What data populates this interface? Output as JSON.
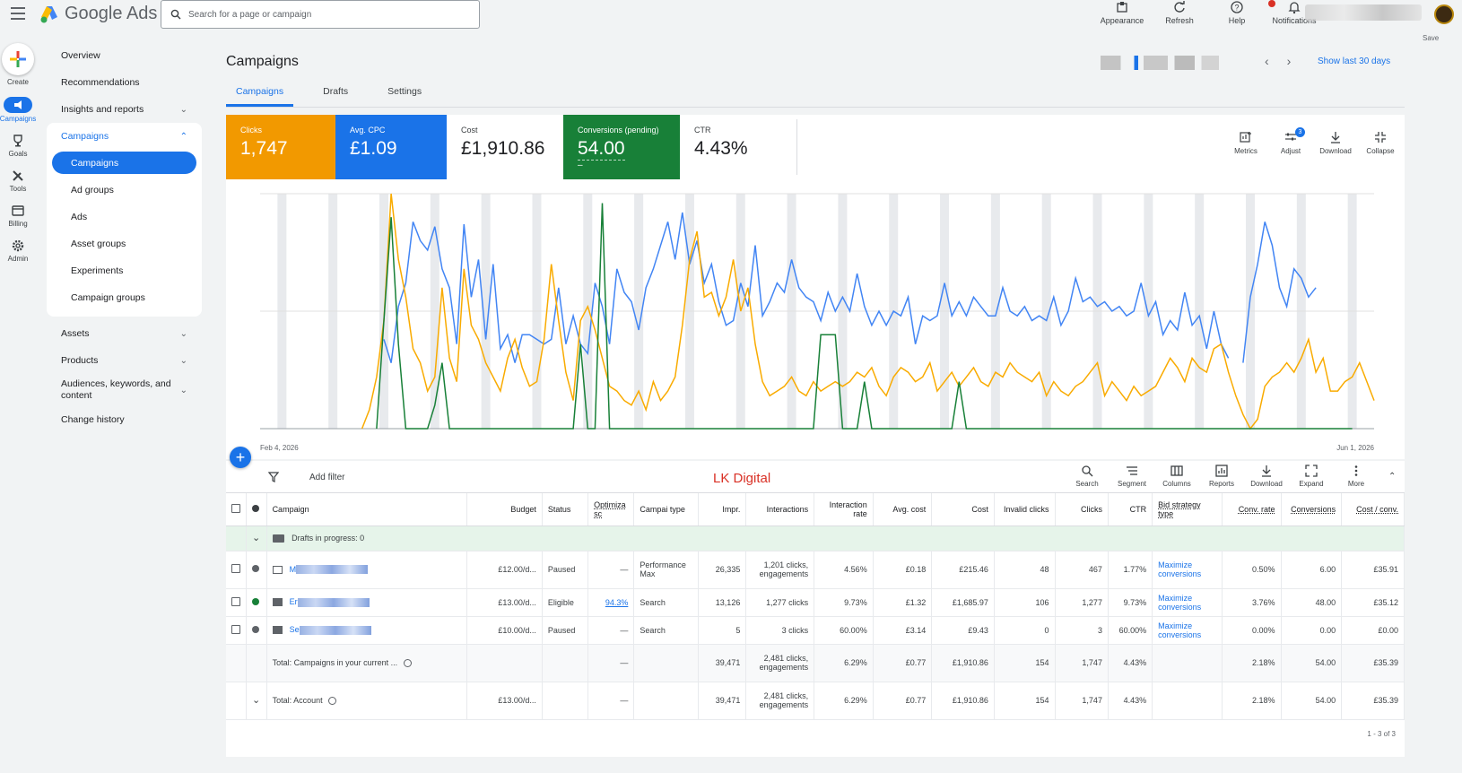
{
  "app": {
    "name": "Google Ads",
    "search_placeholder": "Search for a page or campaign"
  },
  "top_actions": [
    {
      "label": "Appearance",
      "icon": "appearance-icon"
    },
    {
      "label": "Refresh",
      "icon": "refresh-icon"
    },
    {
      "label": "Help",
      "icon": "help-icon"
    },
    {
      "label": "Notifications",
      "icon": "bell-icon"
    }
  ],
  "account": {
    "save_label": "Save"
  },
  "rail": [
    {
      "label": "Create",
      "icon": "plus-icon"
    },
    {
      "label": "Campaigns",
      "icon": "megaphone-icon",
      "active": true
    },
    {
      "label": "Goals",
      "icon": "trophy-icon"
    },
    {
      "label": "Tools",
      "icon": "tools-icon"
    },
    {
      "label": "Billing",
      "icon": "card-icon"
    },
    {
      "label": "Admin",
      "icon": "gear-icon"
    }
  ],
  "sidenav": {
    "overview": "Overview",
    "recommendations": "Recommendations",
    "insights": "Insights and reports",
    "campaigns_section": "Campaigns",
    "subitems": [
      "Campaigns",
      "Ad groups",
      "Ads",
      "Asset groups",
      "Experiments",
      "Campaign groups"
    ],
    "assets": "Assets",
    "products": "Products",
    "audiences": "Audiences, keywords, and content",
    "change_history": "Change history"
  },
  "page": {
    "title": "Campaigns",
    "show_last": "Show last 30 days",
    "tabs": [
      "Campaigns",
      "Drafts",
      "Settings"
    ]
  },
  "scorecards": [
    {
      "label": "Clicks",
      "value": "1,747",
      "color": "#f29900"
    },
    {
      "label": "Avg. CPC",
      "value": "£1.09",
      "color": "#1a73e8"
    },
    {
      "label": "Cost",
      "value": "£1,910.86",
      "color": "#ffffff"
    },
    {
      "label": "Conversions (pending)",
      "value": "54.00",
      "sub": "–",
      "color": "#188038"
    },
    {
      "label": "CTR",
      "value": "4.43%",
      "color": "#ffffff"
    }
  ],
  "card_tools": [
    "Metrics",
    "Adjust",
    "Download",
    "Collapse"
  ],
  "adjust_badge": "3",
  "chart_data": {
    "type": "line",
    "x_start_label": "Feb 4, 2026",
    "x_end_label": "Jun 1, 2026",
    "series": [
      {
        "color": "#4285f4",
        "values": [
          null,
          null,
          null,
          null,
          null,
          null,
          null,
          null,
          null,
          null,
          null,
          null,
          null,
          null,
          null,
          null,
          null,
          0.38,
          0.28,
          0.52,
          0.62,
          0.88,
          0.8,
          0.76,
          0.86,
          0.68,
          0.6,
          0.36,
          0.87,
          0.56,
          0.72,
          0.38,
          0.7,
          0.34,
          0.4,
          0.28,
          0.4,
          0.4,
          0.38,
          0.36,
          0.38,
          0.6,
          0.36,
          0.48,
          0.36,
          0.32,
          0.62,
          0.52,
          0.36,
          0.68,
          0.58,
          0.54,
          0.42,
          0.6,
          0.68,
          0.78,
          0.88,
          0.72,
          0.92,
          0.7,
          0.8,
          0.62,
          0.7,
          0.54,
          0.44,
          0.46,
          0.62,
          0.52,
          0.78,
          0.48,
          0.54,
          0.62,
          0.58,
          0.72,
          0.6,
          0.56,
          0.54,
          0.46,
          0.58,
          0.5,
          0.56,
          0.5,
          0.66,
          0.52,
          0.44,
          0.5,
          0.44,
          0.5,
          0.48,
          0.56,
          0.36,
          0.48,
          0.46,
          0.48,
          0.62,
          0.48,
          0.54,
          0.48,
          0.56,
          0.52,
          0.48,
          0.48,
          0.6,
          0.5,
          0.48,
          0.52,
          0.46,
          0.48,
          0.46,
          0.56,
          0.44,
          0.5,
          0.64,
          0.54,
          0.56,
          0.52,
          0.54,
          0.5,
          0.52,
          0.48,
          0.5,
          0.62,
          0.48,
          0.54,
          0.4,
          0.46,
          0.42,
          0.58,
          0.44,
          0.48,
          0.34,
          0.5,
          0.36,
          0.3,
          null,
          0.28,
          0.56,
          0.7,
          0.88,
          0.78,
          0.6,
          0.52,
          0.68,
          0.64,
          0.56,
          0.6
        ]
      },
      {
        "color": "#f9ab00",
        "values": [
          null,
          null,
          null,
          null,
          null,
          null,
          null,
          null,
          null,
          null,
          null,
          null,
          null,
          null,
          0.0,
          0.08,
          0.22,
          0.46,
          1.0,
          0.72,
          0.56,
          0.34,
          0.28,
          0.16,
          0.22,
          0.6,
          0.3,
          0.2,
          0.68,
          0.44,
          0.38,
          0.28,
          0.22,
          0.16,
          0.3,
          0.38,
          0.26,
          0.18,
          0.2,
          0.38,
          0.7,
          0.46,
          0.24,
          0.12,
          0.46,
          0.52,
          0.42,
          0.3,
          0.18,
          0.16,
          0.12,
          0.1,
          0.16,
          0.08,
          0.2,
          0.12,
          0.16,
          0.22,
          0.44,
          0.72,
          0.84,
          0.56,
          0.58,
          0.48,
          0.56,
          0.72,
          0.5,
          0.6,
          0.36,
          0.2,
          0.14,
          0.16,
          0.18,
          0.22,
          0.16,
          0.14,
          0.2,
          0.16,
          0.18,
          0.2,
          0.18,
          0.2,
          0.24,
          0.22,
          0.26,
          0.18,
          0.14,
          0.22,
          0.26,
          0.24,
          0.2,
          0.22,
          0.28,
          0.16,
          0.2,
          0.24,
          0.18,
          0.22,
          0.26,
          0.2,
          0.18,
          0.24,
          0.22,
          0.28,
          0.24,
          0.22,
          0.2,
          0.24,
          0.14,
          0.2,
          0.16,
          0.14,
          0.18,
          0.2,
          0.24,
          0.28,
          0.14,
          0.2,
          0.16,
          0.12,
          0.18,
          0.14,
          0.16,
          0.18,
          0.24,
          0.3,
          0.26,
          0.2,
          0.3,
          0.26,
          0.24,
          0.34,
          0.36,
          0.24,
          0.14,
          0.06,
          0.0,
          0.04,
          0.18,
          0.22,
          0.24,
          0.28,
          0.24,
          0.3,
          0.38,
          0.24,
          0.3,
          0.16,
          0.16,
          0.2,
          0.22,
          0.28,
          0.2,
          0.12
        ]
      },
      {
        "color": "#188038",
        "values": [
          null,
          null,
          null,
          null,
          null,
          null,
          null,
          null,
          null,
          null,
          null,
          null,
          null,
          null,
          null,
          null,
          0.0,
          0.46,
          0.9,
          0.36,
          0.0,
          0.0,
          0.0,
          0.0,
          0.1,
          0.28,
          0.0,
          0.0,
          0.0,
          0.0,
          0.0,
          0.0,
          0.0,
          0.0,
          0.0,
          0.0,
          0.0,
          0.0,
          0.0,
          0.0,
          0.0,
          0.0,
          0.0,
          0.0,
          0.36,
          0.0,
          0.0,
          0.96,
          0.0,
          0.0,
          0.0,
          0.0,
          0.0,
          0.0,
          0.0,
          0.0,
          0.0,
          0.0,
          0.0,
          0.0,
          0.0,
          0.0,
          0.0,
          0.0,
          0.0,
          0.0,
          0.0,
          0.0,
          0.0,
          0.0,
          0.0,
          0.0,
          0.0,
          0.0,
          0.0,
          0.0,
          0.0,
          0.4,
          0.4,
          0.4,
          0.0,
          0.0,
          0.0,
          0.2,
          0.0,
          0.0,
          0.0,
          0.0,
          0.0,
          0.0,
          0.0,
          0.0,
          0.0,
          0.0,
          0.0,
          0.0,
          0.2,
          0.0,
          0.0,
          0.0,
          0.0,
          0.0,
          0.0,
          0.0,
          0.0,
          0.0,
          0.0,
          0.0,
          0.0,
          0.0,
          0.0,
          0.0,
          0.0,
          0.0,
          0.0,
          0.0,
          0.0,
          0.0,
          0.0,
          0.0,
          0.0,
          0.0,
          0.0,
          0.0,
          0.0,
          0.0,
          0.0,
          0.0,
          0.0,
          0.0,
          0.0,
          0.0,
          0.0,
          0.0,
          0.0,
          0.0,
          0.0,
          0.0,
          0.0,
          0.0,
          0.0,
          0.0,
          0.0,
          0.0,
          0.0,
          0.0,
          0.0,
          0.0,
          0.0,
          0.0,
          0.0
        ]
      }
    ]
  },
  "table_toolbar": {
    "add_filter": "Add filter",
    "watermark": "LK Digital",
    "tools": [
      "Search",
      "Segment",
      "Columns",
      "Reports",
      "Download",
      "Expand",
      "More"
    ]
  },
  "table": {
    "headers": [
      "Campaign",
      "Budget",
      "Status",
      "Optimiza sc",
      "Campai type",
      "Impr.",
      "Interactions",
      "Interaction rate",
      "Avg. cost",
      "Cost",
      "Invalid clicks",
      "Clicks",
      "CTR",
      "Bid strategy type",
      "Conv. rate",
      "Conversions",
      "Cost / conv."
    ],
    "drafts": "Drafts in progress: 0",
    "rows": [
      {
        "name": "M",
        "budget": "£12.00/d...",
        "status": "Paused",
        "opt": "—",
        "type": "Performance Max",
        "impr": "26,335",
        "interactions": "1,201 clicks, engagements",
        "irate": "4.56%",
        "avg": "£0.18",
        "cost": "£215.46",
        "invalid": "48",
        "clicks": "467",
        "ctr": "1.77%",
        "bid": "Maximize conversions",
        "crate": "0.50%",
        "conv": "6.00",
        "cpc": "£35.91",
        "dot": "#5f6368"
      },
      {
        "name": "Er",
        "budget": "£13.00/d...",
        "status": "Eligible",
        "opt": "94.3%",
        "type": "Search",
        "impr": "13,126",
        "interactions": "1,277 clicks",
        "irate": "9.73%",
        "avg": "£1.32",
        "cost": "£1,685.97",
        "invalid": "106",
        "clicks": "1,277",
        "ctr": "9.73%",
        "bid": "Maximize conversions",
        "crate": "3.76%",
        "conv": "48.00",
        "cpc": "£35.12",
        "dot": "#188038"
      },
      {
        "name": "Se",
        "budget": "£10.00/d...",
        "status": "Paused",
        "opt": "—",
        "type": "Search",
        "impr": "5",
        "interactions": "3 clicks",
        "irate": "60.00%",
        "avg": "£3.14",
        "cost": "£9.43",
        "invalid": "0",
        "clicks": "3",
        "ctr": "60.00%",
        "bid": "Maximize conversions",
        "crate": "0.00%",
        "conv": "0.00",
        "cpc": "£0.00",
        "dot": "#5f6368"
      }
    ],
    "total_current": {
      "label": "Total: Campaigns in your current ...",
      "opt": "—",
      "impr": "39,471",
      "interactions": "2,481 clicks, engagements",
      "irate": "6.29%",
      "avg": "£0.77",
      "cost": "£1,910.86",
      "invalid": "154",
      "clicks": "1,747",
      "ctr": "4.43%",
      "crate": "2.18%",
      "conv": "54.00",
      "cpc": "£35.39"
    },
    "total_account": {
      "label": "Total: Account",
      "budget": "£13.00/d...",
      "opt": "—",
      "impr": "39,471",
      "interactions": "2,481 clicks, engagements",
      "irate": "6.29%",
      "avg": "£0.77",
      "cost": "£1,910.86",
      "invalid": "154",
      "clicks": "1,747",
      "ctr": "4.43%",
      "crate": "2.18%",
      "conv": "54.00",
      "cpc": "£35.39"
    },
    "pagination": "1 - 3 of 3"
  }
}
